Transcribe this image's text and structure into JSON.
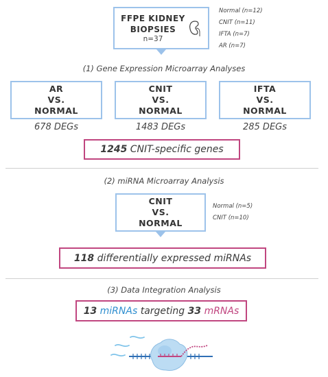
{
  "source": {
    "title_line1": "FFPE KIDNEY",
    "title_line2": "BIOPSIES",
    "count": "n=37",
    "groups": [
      "Normal (n=12)",
      "CNIT (n=11)",
      "IFTA (n=7)",
      "AR (n=7)"
    ]
  },
  "step1": {
    "heading": "(1) Gene Expression Microarray Analyses",
    "comparisons": [
      {
        "l1": "AR",
        "l2": "VS.",
        "l3": "NORMAL",
        "degs": "678 DEGs"
      },
      {
        "l1": "CNIT",
        "l2": "VS.",
        "l3": "NORMAL",
        "degs": "1483 DEGs"
      },
      {
        "l1": "IFTA",
        "l2": "VS.",
        "l3": "NORMAL",
        "degs": "285 DEGs"
      }
    ],
    "result_num": "1245",
    "result_text": " CNIT-specific genes"
  },
  "step2": {
    "heading": "(2) miRNA Microarray Analysis",
    "l1": "CNIT",
    "l2": "VS.",
    "l3": "NORMAL",
    "groups": [
      "Normal (n=5)",
      "CNIT (n=10)"
    ],
    "result_num": "118",
    "result_text": " differentially expressed miRNAs"
  },
  "step3": {
    "heading": "(3) Data Integration Analysis",
    "n_mirna": "13",
    "mirna_word": "miRNAs",
    "middle": "targeting",
    "n_mrna": "33",
    "mrna_word": "mRNAs"
  },
  "colors": {
    "box_border": "#9cc2ea",
    "highlight_border": "#c0457f",
    "mirna": "#2f8fd0",
    "mrna": "#c0457f"
  }
}
